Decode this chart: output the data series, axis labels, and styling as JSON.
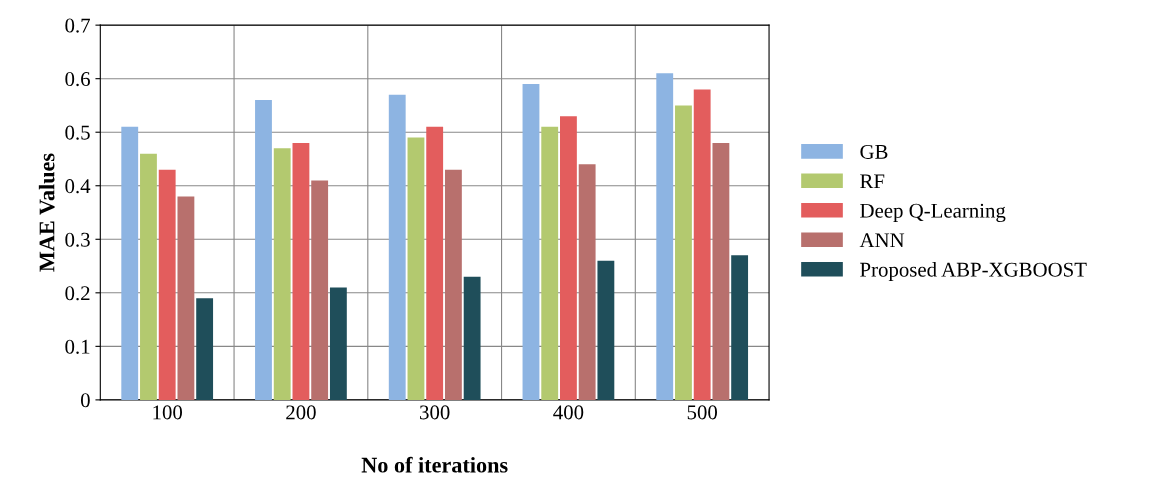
{
  "chart_data": {
    "type": "bar",
    "xlabel": "No of iterations",
    "ylabel": "MAE Values",
    "categories": [
      "100",
      "200",
      "300",
      "400",
      "500"
    ],
    "series": [
      {
        "name": "GB",
        "color": "#8db4e2",
        "values": [
          0.51,
          0.56,
          0.57,
          0.59,
          0.61
        ]
      },
      {
        "name": "RF",
        "color": "#b3c96f",
        "values": [
          0.46,
          0.47,
          0.49,
          0.51,
          0.55
        ]
      },
      {
        "name": "Deep Q-Learning",
        "color": "#e35d5d",
        "values": [
          0.43,
          0.48,
          0.51,
          0.53,
          0.58
        ]
      },
      {
        "name": "ANN",
        "color": "#b8706d",
        "values": [
          0.38,
          0.41,
          0.43,
          0.44,
          0.48
        ]
      },
      {
        "name": "Proposed ABP-XGBOOST",
        "color": "#1f4e5a",
        "values": [
          0.19,
          0.21,
          0.23,
          0.26,
          0.27
        ]
      }
    ],
    "ylim": [
      0,
      0.7
    ],
    "yticks": [
      0,
      0.1,
      0.2,
      0.3,
      0.4,
      0.5,
      0.6,
      0.7
    ],
    "grid": true,
    "legend": "right"
  }
}
